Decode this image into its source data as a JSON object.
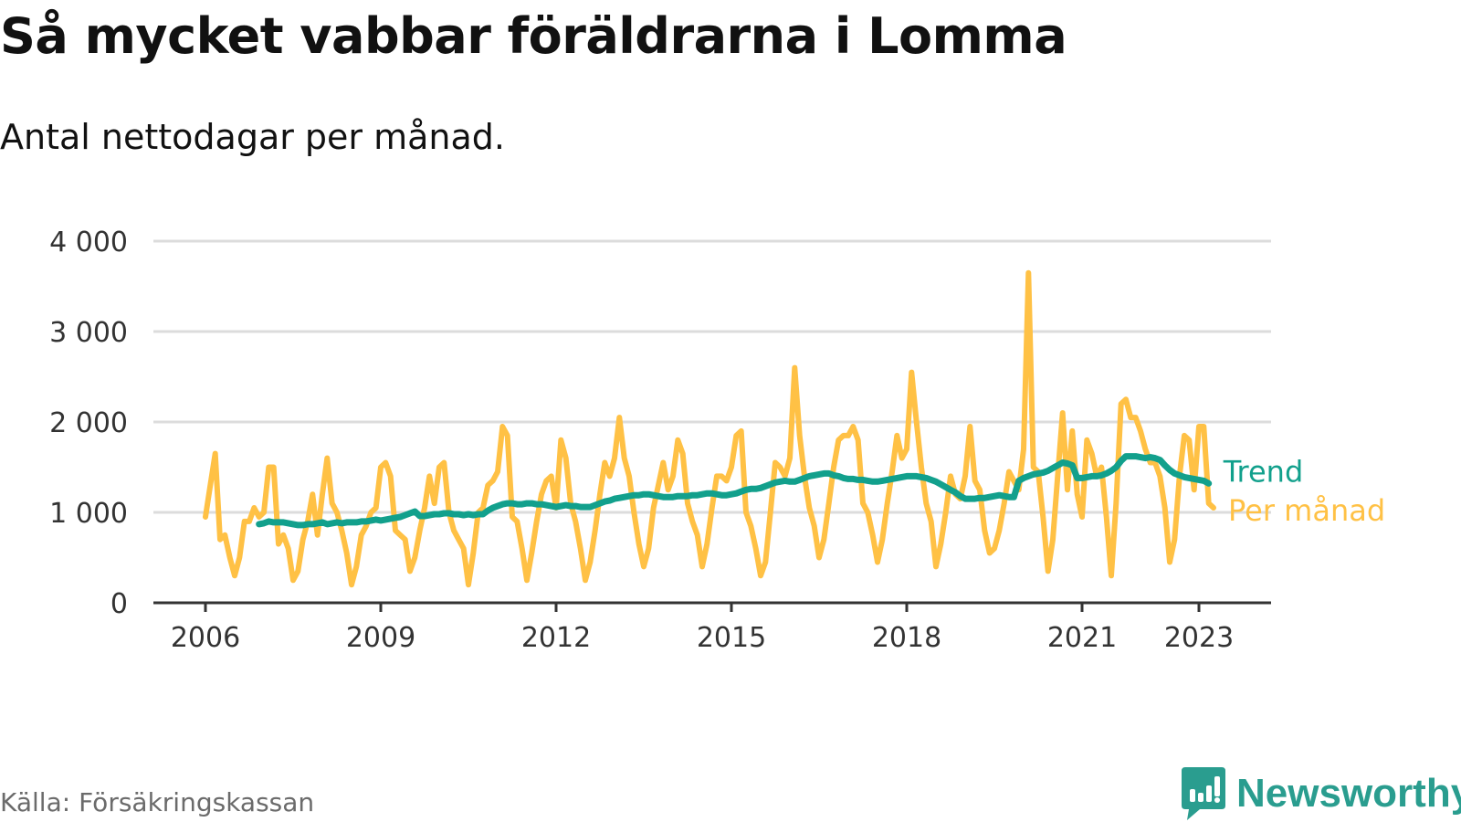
{
  "title": "Så mycket vabbar föräldrarna i Lomma",
  "subtitle": "Antal nettodagar per månad.",
  "source": "Källa: Försäkringskassan",
  "brand": "Newsworthy",
  "chart_data": {
    "type": "line",
    "ylim": [
      0,
      4000
    ],
    "y_ticks": [
      0,
      1000,
      2000,
      3000,
      4000
    ],
    "y_tick_labels": [
      "0",
      "1 000",
      "2 000",
      "3 000",
      "4 000"
    ],
    "x_range": [
      2006.0,
      2023.5
    ],
    "x_ticks": [
      2006,
      2009,
      2012,
      2015,
      2018,
      2021,
      2023
    ],
    "x_tick_labels": [
      "2006",
      "2009",
      "2012",
      "2015",
      "2018",
      "2021",
      "2023"
    ],
    "grid": true,
    "legend": "right end of lines",
    "series": [
      {
        "name": "Per månad",
        "color": "#ffc145",
        "start": 2006.0,
        "step_months": 1,
        "values": [
          950,
          1300,
          1650,
          700,
          750,
          500,
          300,
          500,
          900,
          900,
          1050,
          950,
          1000,
          1500,
          1500,
          650,
          750,
          600,
          250,
          350,
          700,
          900,
          1200,
          750,
          1200,
          1600,
          1100,
          1000,
          800,
          550,
          200,
          400,
          750,
          850,
          1000,
          1050,
          1500,
          1550,
          1400,
          800,
          750,
          700,
          350,
          500,
          800,
          1050,
          1400,
          1100,
          1500,
          1550,
          1000,
          800,
          700,
          600,
          200,
          550,
          1000,
          1050,
          1300,
          1350,
          1450,
          1950,
          1850,
          950,
          900,
          600,
          250,
          550,
          900,
          1200,
          1350,
          1400,
          1050,
          1800,
          1600,
          1100,
          900,
          600,
          250,
          450,
          800,
          1200,
          1550,
          1400,
          1600,
          2050,
          1600,
          1400,
          1000,
          650,
          400,
          600,
          1050,
          1300,
          1550,
          1250,
          1400,
          1800,
          1650,
          1100,
          900,
          750,
          400,
          650,
          1050,
          1400,
          1400,
          1350,
          1500,
          1850,
          1900,
          1000,
          850,
          600,
          300,
          450,
          1000,
          1550,
          1500,
          1400,
          1600,
          2600,
          1850,
          1400,
          1050,
          850,
          500,
          700,
          1100,
          1500,
          1800,
          1850,
          1850,
          1950,
          1800,
          1100,
          1000,
          750,
          450,
          700,
          1100,
          1450,
          1850,
          1600,
          1700,
          2550,
          2000,
          1500,
          1100,
          900,
          400,
          650,
          1000,
          1400,
          1200,
          1150,
          1400,
          1950,
          1350,
          1250,
          800,
          550,
          600,
          800,
          1100,
          1450,
          1350,
          1250,
          1700,
          3650,
          1500,
          1450,
          950,
          350,
          700,
          1400,
          2100,
          1250,
          1900,
          1200,
          950,
          1800,
          1650,
          1400,
          1500,
          950,
          300,
          1100,
          2200,
          2250,
          2050,
          2050,
          1900,
          1700,
          1550,
          1550,
          1400,
          1050,
          450,
          700,
          1400,
          1850,
          1800,
          1250,
          1950,
          1950,
          1100,
          1050
        ]
      },
      {
        "name": "Trend",
        "color": "#12a08c",
        "start": 2006.917,
        "step_months": 1,
        "values": [
          870,
          880,
          900,
          890,
          890,
          890,
          880,
          870,
          860,
          860,
          870,
          870,
          880,
          890,
          870,
          880,
          890,
          880,
          890,
          890,
          890,
          900,
          900,
          910,
          920,
          910,
          920,
          930,
          940,
          950,
          970,
          990,
          1010,
          960,
          960,
          970,
          980,
          980,
          990,
          990,
          980,
          980,
          970,
          980,
          970,
          980,
          980,
          1020,
          1050,
          1070,
          1090,
          1100,
          1100,
          1090,
          1090,
          1100,
          1100,
          1090,
          1090,
          1080,
          1070,
          1060,
          1070,
          1080,
          1070,
          1070,
          1060,
          1060,
          1060,
          1080,
          1100,
          1120,
          1130,
          1150,
          1160,
          1170,
          1180,
          1190,
          1190,
          1200,
          1200,
          1190,
          1180,
          1170,
          1170,
          1170,
          1180,
          1180,
          1180,
          1190,
          1190,
          1200,
          1210,
          1210,
          1200,
          1190,
          1190,
          1200,
          1210,
          1230,
          1250,
          1260,
          1260,
          1270,
          1290,
          1310,
          1330,
          1340,
          1350,
          1340,
          1340,
          1360,
          1380,
          1400,
          1410,
          1420,
          1430,
          1430,
          1410,
          1400,
          1380,
          1370,
          1370,
          1360,
          1360,
          1350,
          1340,
          1340,
          1350,
          1360,
          1370,
          1380,
          1390,
          1400,
          1400,
          1400,
          1390,
          1380,
          1360,
          1340,
          1310,
          1280,
          1250,
          1220,
          1180,
          1150,
          1150,
          1150,
          1160,
          1160,
          1170,
          1180,
          1190,
          1180,
          1170,
          1170,
          1350,
          1380,
          1400,
          1420,
          1430,
          1440,
          1460,
          1490,
          1520,
          1550,
          1540,
          1520,
          1380,
          1380,
          1390,
          1400,
          1400,
          1410,
          1430,
          1460,
          1500,
          1570,
          1620,
          1620,
          1620,
          1610,
          1600,
          1610,
          1600,
          1580,
          1520,
          1470,
          1430,
          1410,
          1390,
          1380,
          1370,
          1360,
          1350,
          1320
        ]
      }
    ]
  }
}
